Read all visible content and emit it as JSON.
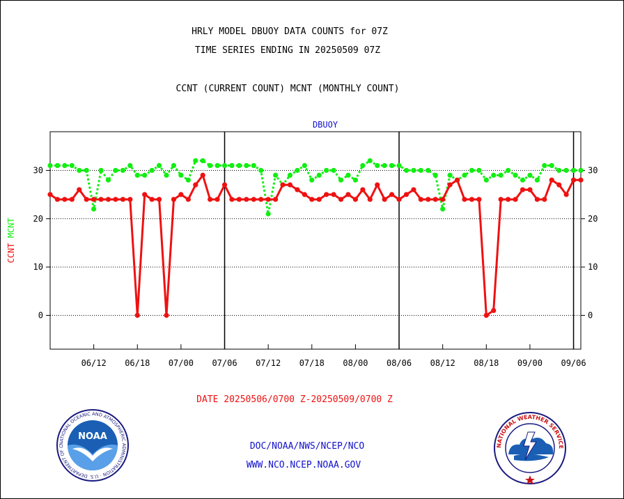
{
  "header": {
    "line1": "HRLY MODEL DBUOY DATA COUNTS for 07Z",
    "line2": "TIME SERIES ENDING IN 20250509 07Z",
    "line3": "CCNT (CURRENT COUNT) MCNT (MONTHLY COUNT)"
  },
  "footer": {
    "date_range": "DATE 20250506/0700 Z-20250509/0700 Z",
    "org_path": "DOC/NOAA/NWS/NCEP/NCO",
    "website": "WWW.NCO.NCEP.NOAA.GOV"
  },
  "logos": {
    "noaa_text": "NOAA",
    "noaa_ring_text": "NATIONAL OCEANIC AND ATMOSPHERIC ADMINISTRATION · U.S. DEPARTMENT OF COMMERCE ·",
    "nws_ring_text": "NATIONAL WEATHER SERVICE"
  },
  "colors": {
    "ccnt": "#ee1111",
    "mcnt": "#11ee11",
    "title_blue": "#1111cc",
    "date_red": "#ee1111"
  },
  "chart_data": {
    "type": "line",
    "title": "DBUOY",
    "ylabel_left": [
      "CCNT",
      "MCNT"
    ],
    "ylim": [
      -7,
      38
    ],
    "yticks": [
      0,
      10,
      20,
      30
    ],
    "xlim": [
      0,
      73
    ],
    "xticks": [
      {
        "x": 6,
        "label": "06/12"
      },
      {
        "x": 12,
        "label": "06/18"
      },
      {
        "x": 18,
        "label": "07/00"
      },
      {
        "x": 24,
        "label": "07/06"
      },
      {
        "x": 30,
        "label": "07/12"
      },
      {
        "x": 36,
        "label": "07/18"
      },
      {
        "x": 42,
        "label": "08/00"
      },
      {
        "x": 48,
        "label": "08/06"
      },
      {
        "x": 54,
        "label": "08/12"
      },
      {
        "x": 60,
        "label": "08/18"
      },
      {
        "x": 66,
        "label": "09/00"
      },
      {
        "x": 72,
        "label": "09/06"
      }
    ],
    "day_boundaries": [
      24,
      48,
      72
    ],
    "grid": "horizontal dotted",
    "series": [
      {
        "name": "MCNT",
        "style": "dotted",
        "x": [
          0,
          1,
          2,
          3,
          4,
          5,
          6,
          7,
          8,
          9,
          10,
          11,
          12,
          13,
          14,
          15,
          16,
          17,
          18,
          19,
          20,
          21,
          22,
          23,
          24,
          25,
          26,
          27,
          28,
          29,
          30,
          31,
          32,
          33,
          34,
          35,
          36,
          37,
          38,
          39,
          40,
          41,
          42,
          43,
          44,
          45,
          46,
          47,
          48,
          49,
          50,
          51,
          52,
          53,
          54,
          55,
          56,
          57,
          58,
          59,
          60,
          61,
          62,
          63,
          64,
          65,
          66,
          67,
          68,
          69,
          70,
          71,
          72,
          73
        ],
        "values": [
          31,
          31,
          31,
          31,
          30,
          30,
          22,
          30,
          28,
          30,
          30,
          31,
          29,
          29,
          30,
          31,
          29,
          31,
          29,
          28,
          32,
          32,
          31,
          31,
          31,
          31,
          31,
          31,
          31,
          30,
          21,
          29,
          27,
          29,
          30,
          31,
          28,
          29,
          30,
          30,
          28,
          29,
          28,
          31,
          32,
          31,
          31,
          31,
          31,
          30,
          30,
          30,
          30,
          29,
          22,
          29,
          28,
          29,
          30,
          30,
          28,
          29,
          29,
          30,
          29,
          28,
          29,
          28,
          31,
          31,
          30,
          30,
          30,
          30
        ]
      },
      {
        "name": "CCNT",
        "style": "solid",
        "x": [
          0,
          1,
          2,
          3,
          4,
          5,
          6,
          7,
          8,
          9,
          10,
          11,
          12,
          13,
          14,
          15,
          16,
          17,
          18,
          19,
          20,
          21,
          22,
          23,
          24,
          25,
          26,
          27,
          28,
          29,
          30,
          31,
          32,
          33,
          34,
          35,
          36,
          37,
          38,
          39,
          40,
          41,
          42,
          43,
          44,
          45,
          46,
          47,
          48,
          49,
          50,
          51,
          52,
          53,
          54,
          55,
          56,
          57,
          58,
          59,
          60,
          61,
          62,
          63,
          64,
          65,
          66,
          67,
          68,
          69,
          70,
          71,
          72,
          73
        ],
        "values": [
          25,
          24,
          24,
          24,
          26,
          24,
          24,
          24,
          24,
          24,
          24,
          24,
          0,
          25,
          24,
          24,
          0,
          24,
          25,
          24,
          27,
          29,
          24,
          24,
          27,
          24,
          24,
          24,
          24,
          24,
          24,
          24,
          27,
          27,
          26,
          25,
          24,
          24,
          25,
          25,
          24,
          25,
          24,
          26,
          24,
          27,
          24,
          25,
          24,
          25,
          26,
          24,
          24,
          24,
          24,
          27,
          28,
          24,
          24,
          24,
          0,
          1,
          24,
          24,
          24,
          26,
          26,
          24,
          24,
          28,
          27,
          25,
          28,
          28
        ]
      }
    ]
  }
}
